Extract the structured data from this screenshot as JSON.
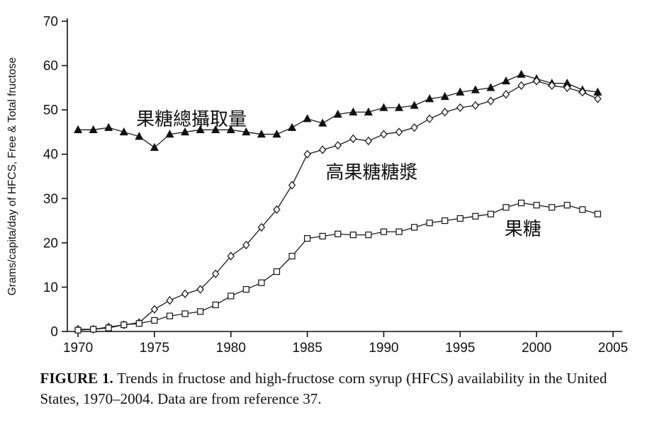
{
  "chart_data": {
    "type": "line",
    "x": [
      1970,
      1971,
      1972,
      1973,
      1974,
      1975,
      1976,
      1977,
      1978,
      1979,
      1980,
      1981,
      1982,
      1983,
      1984,
      1985,
      1986,
      1987,
      1988,
      1989,
      1990,
      1991,
      1992,
      1993,
      1994,
      1995,
      1996,
      1997,
      1998,
      1999,
      2000,
      2001,
      2002,
      2003,
      2004
    ],
    "series": [
      {
        "name": "Total fructose",
        "marker": "triangle-filled",
        "values": [
          45.5,
          45.5,
          46,
          45,
          44,
          41.5,
          44.5,
          45,
          45.5,
          45.5,
          45.5,
          45,
          44.5,
          44.5,
          46,
          48,
          47,
          49,
          49.5,
          49.5,
          50.5,
          50.5,
          51,
          52.5,
          53,
          54,
          54.5,
          55,
          56.5,
          58,
          57,
          56,
          56,
          54.5,
          54
        ]
      },
      {
        "name": "HFCS",
        "marker": "diamond-open",
        "values": [
          0.5,
          0.5,
          1,
          1.5,
          2,
          5,
          7,
          8.5,
          9.5,
          13,
          17,
          19.5,
          23.5,
          27.5,
          33,
          40,
          41,
          42,
          43.5,
          43,
          44.5,
          45,
          46,
          48,
          49.5,
          50.5,
          51,
          52,
          53.5,
          55.5,
          56.5,
          55.5,
          55,
          54,
          52.5
        ]
      },
      {
        "name": "Free fructose",
        "marker": "square-open",
        "values": [
          0.3,
          0.5,
          0.8,
          1.5,
          1.8,
          2.5,
          3.5,
          4,
          4.5,
          6,
          8,
          9.5,
          11,
          13.5,
          17,
          21,
          21.5,
          22,
          21.8,
          21.8,
          22.5,
          22.5,
          23.5,
          24.5,
          25,
          25.5,
          26,
          26.5,
          28,
          29,
          28.5,
          28,
          28.5,
          27.5,
          26.5
        ]
      }
    ],
    "ylabel": "Grams/capita/day of HFCS, Free & Total fructose",
    "xlabel": "",
    "ylim": [
      0,
      70
    ],
    "yticks": [
      0,
      10,
      20,
      30,
      40,
      50,
      60,
      70
    ],
    "xticks": [
      1970,
      1975,
      1980,
      1985,
      1990,
      1995,
      2000,
      2005
    ],
    "grid": false,
    "legend_position": "none",
    "line_color": "#1a1a1a",
    "annotation_color": "#F5A21B",
    "annotations": [
      {
        "text": "果糖總攝取量",
        "x": 1973.8,
        "y": 46.5
      },
      {
        "text": "高果糖糖漿",
        "x": 1986.2,
        "y": 34.5
      },
      {
        "text": "果糖",
        "x": 1997.9,
        "y": 21.7
      }
    ]
  },
  "caption": {
    "label": "FIGURE 1.",
    "text": " Trends in fructose and high-fructose corn syrup (HFCS) availability in the United States, 1970–2004. Data are from reference 37."
  }
}
